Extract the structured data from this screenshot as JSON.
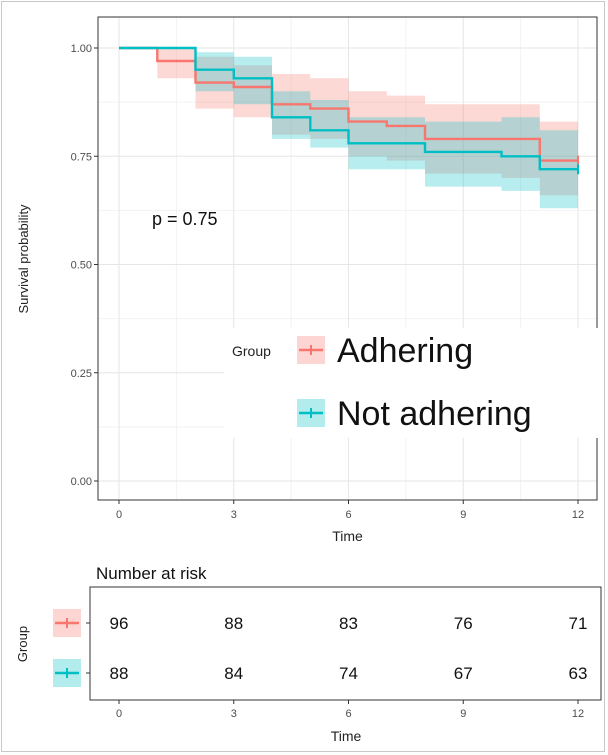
{
  "chart_data": [
    {
      "type": "line",
      "step": true,
      "annotation": "p = 0.75",
      "xlabel": "Time",
      "ylabel": "Survival probability",
      "xlim": [
        0,
        12
      ],
      "ylim": [
        0,
        1
      ],
      "xticks": [
        "0",
        "3",
        "6",
        "9",
        "12"
      ],
      "yticks": [
        "0.00",
        "0.25",
        "0.50",
        "0.75",
        "1.00"
      ],
      "grid": true,
      "legend": {
        "title": "Group",
        "position": "inside-right"
      },
      "series": [
        {
          "name": "Adhering",
          "color": "#F8766D",
          "x": [
            0,
            1,
            2,
            3,
            4,
            5,
            6,
            7,
            8,
            10,
            11,
            12
          ],
          "y": [
            1.0,
            0.97,
            0.92,
            0.91,
            0.87,
            0.86,
            0.83,
            0.82,
            0.79,
            0.79,
            0.74,
            0.74
          ],
          "lower": [
            1.0,
            0.93,
            0.86,
            0.84,
            0.8,
            0.79,
            0.75,
            0.74,
            0.71,
            0.7,
            0.66,
            0.66
          ],
          "upper": [
            1.0,
            1.0,
            0.98,
            0.96,
            0.94,
            0.93,
            0.9,
            0.89,
            0.87,
            0.87,
            0.83,
            0.83
          ]
        },
        {
          "name": "Not adhering",
          "color": "#00BFC4",
          "x": [
            0,
            2,
            3,
            4,
            5,
            6,
            8,
            10,
            11,
            12
          ],
          "y": [
            1.0,
            0.95,
            0.93,
            0.84,
            0.81,
            0.78,
            0.76,
            0.75,
            0.72,
            0.72
          ],
          "lower": [
            1.0,
            0.9,
            0.87,
            0.79,
            0.77,
            0.72,
            0.68,
            0.67,
            0.63,
            0.63
          ],
          "upper": [
            1.0,
            0.99,
            0.98,
            0.9,
            0.88,
            0.84,
            0.83,
            0.84,
            0.81,
            0.81
          ]
        }
      ]
    },
    {
      "type": "table",
      "title": "Number at risk",
      "xlabel": "Time",
      "ylabel": "Group",
      "xticks": [
        "0",
        "3",
        "6",
        "9",
        "12"
      ],
      "times": [
        0,
        3,
        6,
        9,
        12
      ],
      "rows": [
        {
          "group": "Adhering",
          "color": "#F8766D",
          "values": [
            "96",
            "88",
            "83",
            "76",
            "71"
          ]
        },
        {
          "group": "Not adhering",
          "color": "#00BFC4",
          "values": [
            "88",
            "84",
            "74",
            "67",
            "63"
          ]
        }
      ]
    }
  ]
}
